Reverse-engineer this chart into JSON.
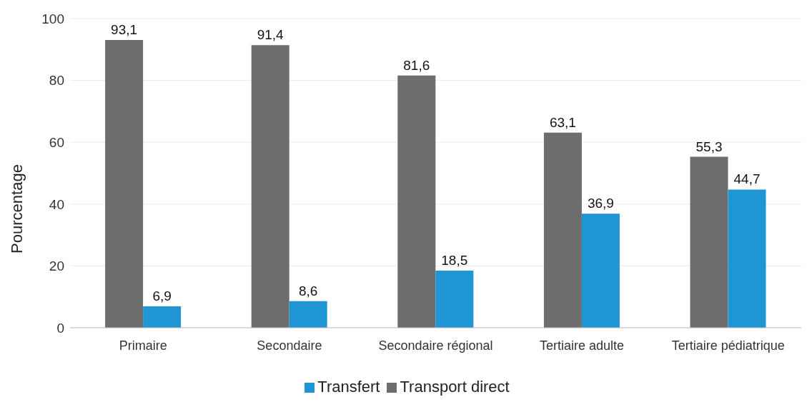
{
  "chart_data": {
    "type": "bar",
    "ylabel": "Pourcentage",
    "categories": [
      "Primaire",
      "Secondaire",
      "Secondaire régional",
      "Tertiaire adulte",
      "Tertiaire pédiatrique"
    ],
    "series": [
      {
        "name": "Transport direct",
        "color": "#6d6d6d",
        "values": [
          93.1,
          91.4,
          81.6,
          63.1,
          55.3
        ],
        "value_labels": [
          "93,1",
          "91,4",
          "81,6",
          "63,1",
          "55,3"
        ]
      },
      {
        "name": "Transfert",
        "color": "#1f96d3",
        "values": [
          6.9,
          8.6,
          18.5,
          36.9,
          44.7
        ],
        "value_labels": [
          "6,9",
          "8,6",
          "18,5",
          "36,9",
          "44,7"
        ]
      }
    ],
    "ylim": [
      0,
      100
    ],
    "yticks": [
      0,
      20,
      40,
      60,
      80,
      100
    ],
    "grid": "y",
    "legend": "bottom"
  }
}
